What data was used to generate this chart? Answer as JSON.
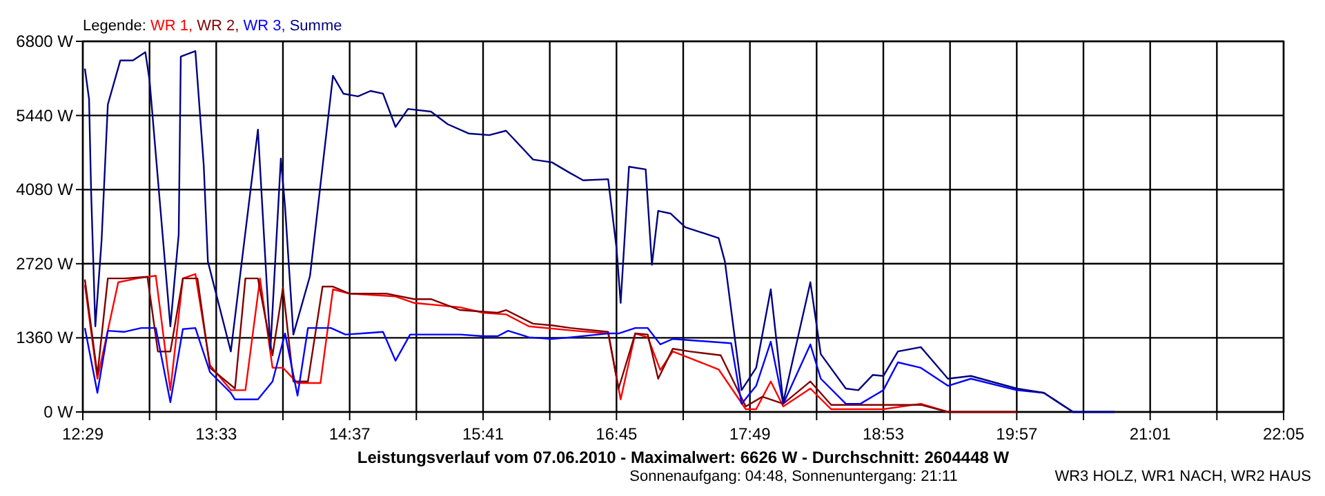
{
  "chart_data": {
    "type": "line",
    "title": "Leistungsverlauf vom 07.06.2010 - Maximalwert: 6626 W - Durchschnitt: 2604448 W",
    "subtitle": "Sonnenaufgang: 04:48, Sonnenuntergang: 21:11",
    "annotations": [
      "WR3 HOLZ, WR1 NACH, WR2 HAUS"
    ],
    "legend_title": "Legende:",
    "legend": "top left",
    "grid": true,
    "xlim": [
      "2010-06-07T12:29",
      "2010-06-07T22:05"
    ],
    "xticks": [
      {
        "value": "2010-06-07T12:29",
        "label": "12:29"
      },
      {
        "value": "2010-06-07T13:01",
        "label": null
      },
      {
        "value": "2010-06-07T13:33",
        "label": "13:33"
      },
      {
        "value": "2010-06-07T14:05",
        "label": null
      },
      {
        "value": "2010-06-07T14:37",
        "label": "14:37"
      },
      {
        "value": "2010-06-07T15:09",
        "label": null
      },
      {
        "value": "2010-06-07T15:41",
        "label": "15:41"
      },
      {
        "value": "2010-06-07T16:13",
        "label": null
      },
      {
        "value": "2010-06-07T16:45",
        "label": "16:45"
      },
      {
        "value": "2010-06-07T17:17",
        "label": null
      },
      {
        "value": "2010-06-07T17:49",
        "label": "17:49"
      },
      {
        "value": "2010-06-07T18:21",
        "label": null
      },
      {
        "value": "2010-06-07T18:53",
        "label": "18:53"
      },
      {
        "value": "2010-06-07T19:25",
        "label": null
      },
      {
        "value": "2010-06-07T19:57",
        "label": "19:57"
      },
      {
        "value": "2010-06-07T20:29",
        "label": null
      },
      {
        "value": "2010-06-07T21:01",
        "label": "21:01"
      },
      {
        "value": "2010-06-07T21:33",
        "label": null
      },
      {
        "value": "2010-06-07T22:05",
        "label": "22:05"
      }
    ],
    "ylim": [
      0,
      6800
    ],
    "yticks": [
      {
        "value": 0,
        "label": "0 W"
      },
      {
        "value": 1360,
        "label": "1360 W"
      },
      {
        "value": 2720,
        "label": "2720 W"
      },
      {
        "value": 4080,
        "label": "4080 W"
      },
      {
        "value": 5440,
        "label": "5440 W"
      },
      {
        "value": 6800,
        "label": "6800 W"
      }
    ],
    "series": [
      {
        "name": "WR 1,",
        "color": "#ff0000",
        "x": [
          "2010-06-07T12:30",
          "2010-06-07T12:36",
          "2010-06-07T12:46",
          "2010-06-07T12:55",
          "2010-06-07T13:04",
          "2010-06-07T13:11",
          "2010-06-07T13:17",
          "2010-06-07T13:23",
          "2010-06-07T13:30",
          "2010-06-07T13:40",
          "2010-06-07T13:47",
          "2010-06-07T13:54",
          "2010-06-07T14:00",
          "2010-06-07T14:05",
          "2010-06-07T14:12",
          "2010-06-07T14:23",
          "2010-06-07T14:29",
          "2010-06-07T14:37",
          "2010-06-07T14:59",
          "2010-06-07T15:08",
          "2010-06-07T15:30",
          "2010-06-07T15:41",
          "2010-06-07T15:52",
          "2010-06-07T16:03",
          "2010-06-07T16:25",
          "2010-06-07T16:41",
          "2010-06-07T16:47",
          "2010-06-07T16:54",
          "2010-06-07T17:00",
          "2010-06-07T17:06",
          "2010-06-07T17:12",
          "2010-06-07T17:20",
          "2010-06-07T17:34",
          "2010-06-07T17:47",
          "2010-06-07T17:52",
          "2010-06-07T17:59",
          "2010-06-07T18:05",
          "2010-06-07T18:18",
          "2010-06-07T18:28",
          "2010-06-07T18:44",
          "2010-06-07T18:53",
          "2010-06-07T19:11",
          "2010-06-07T19:24",
          "2010-06-07T19:35",
          "2010-06-07T19:57"
        ],
        "values": [
          2330,
          610,
          2380,
          2450,
          2500,
          400,
          2450,
          2530,
          860,
          400,
          400,
          2450,
          810,
          810,
          530,
          530,
          2250,
          2170,
          2120,
          2000,
          1920,
          1820,
          1790,
          1570,
          1490,
          1440,
          230,
          1440,
          1370,
          770,
          1110,
          990,
          780,
          50,
          50,
          560,
          100,
          430,
          50,
          50,
          50,
          150,
          0,
          0,
          0
        ]
      },
      {
        "name": "WR 2,",
        "color": "#800000",
        "x": [
          "2010-06-07T12:30",
          "2010-06-07T12:36",
          "2010-06-07T12:41",
          "2010-06-07T12:49",
          "2010-06-07T13:00",
          "2010-06-07T13:05",
          "2010-06-07T13:11",
          "2010-06-07T13:17",
          "2010-06-07T13:24",
          "2010-06-07T13:30",
          "2010-06-07T13:42",
          "2010-06-07T13:47",
          "2010-06-07T13:53",
          "2010-06-07T14:00",
          "2010-06-07T14:05",
          "2010-06-07T14:10",
          "2010-06-07T14:17",
          "2010-06-07T14:24",
          "2010-06-07T14:29",
          "2010-06-07T14:37",
          "2010-06-07T14:55",
          "2010-06-07T15:08",
          "2010-06-07T15:16",
          "2010-06-07T15:30",
          "2010-06-07T15:48",
          "2010-06-07T15:52",
          "2010-06-07T16:05",
          "2010-06-07T16:14",
          "2010-06-07T16:23",
          "2010-06-07T16:41",
          "2010-06-07T16:46",
          "2010-06-07T16:54",
          "2010-06-07T17:00",
          "2010-06-07T17:05",
          "2010-06-07T17:12",
          "2010-06-07T17:20",
          "2010-06-07T17:35",
          "2010-06-07T17:47",
          "2010-06-07T17:55",
          "2010-06-07T18:05",
          "2010-06-07T18:18",
          "2010-06-07T18:28",
          "2010-06-07T18:51",
          "2010-06-07T19:11",
          "2010-06-07T19:24",
          "2010-06-07T19:35",
          "2010-06-07T19:57"
        ],
        "values": [
          2430,
          680,
          2450,
          2450,
          2480,
          1110,
          1110,
          2450,
          2450,
          810,
          430,
          2450,
          2450,
          1040,
          2280,
          560,
          560,
          2300,
          2300,
          2170,
          2170,
          2070,
          2070,
          1870,
          1820,
          1870,
          1620,
          1590,
          1540,
          1470,
          430,
          1440,
          1420,
          610,
          1160,
          1110,
          1040,
          100,
          280,
          150,
          560,
          130,
          130,
          130,
          0,
          0,
          0
        ]
      },
      {
        "name": "WR 3,",
        "color": "#0000ff",
        "x": [
          "2010-06-07T12:30",
          "2010-06-07T12:36",
          "2010-06-07T12:41",
          "2010-06-07T12:49",
          "2010-06-07T12:57",
          "2010-06-07T13:04",
          "2010-06-07T13:11",
          "2010-06-07T13:17",
          "2010-06-07T13:23",
          "2010-06-07T13:30",
          "2010-06-07T13:40",
          "2010-06-07T13:42",
          "2010-06-07T13:53",
          "2010-06-07T14:00",
          "2010-06-07T14:06",
          "2010-06-07T14:12",
          "2010-06-07T14:17",
          "2010-06-07T14:28",
          "2010-06-07T14:35",
          "2010-06-07T14:43",
          "2010-06-07T14:53",
          "2010-06-07T14:59",
          "2010-06-07T15:06",
          "2010-06-07T15:16",
          "2010-06-07T15:30",
          "2010-06-07T15:41",
          "2010-06-07T15:48",
          "2010-06-07T15:53",
          "2010-06-07T16:03",
          "2010-06-07T16:14",
          "2010-06-07T16:23",
          "2010-06-07T16:41",
          "2010-06-07T16:46",
          "2010-06-07T16:54",
          "2010-06-07T17:00",
          "2010-06-07T17:06",
          "2010-06-07T17:12",
          "2010-06-07T17:40",
          "2010-06-07T17:45",
          "2010-06-07T17:52",
          "2010-06-07T17:59",
          "2010-06-07T18:05",
          "2010-06-07T18:18",
          "2010-06-07T18:23",
          "2010-06-07T18:35",
          "2010-06-07T18:42",
          "2010-06-07T18:53",
          "2010-06-07T19:00",
          "2010-06-07T19:11",
          "2010-06-07T19:24",
          "2010-06-07T19:35",
          "2010-06-07T19:57",
          "2010-06-07T20:10",
          "2010-06-07T20:24",
          "2010-06-07T20:44"
        ],
        "values": [
          1540,
          350,
          1490,
          1470,
          1540,
          1540,
          180,
          1520,
          1540,
          730,
          350,
          230,
          230,
          560,
          1440,
          300,
          1540,
          1540,
          1420,
          1440,
          1470,
          940,
          1420,
          1420,
          1420,
          1390,
          1390,
          1490,
          1370,
          1340,
          1370,
          1440,
          1440,
          1540,
          1540,
          1240,
          1340,
          1260,
          150,
          480,
          1290,
          150,
          1240,
          610,
          150,
          150,
          400,
          910,
          810,
          480,
          610,
          400,
          350,
          0,
          0
        ]
      },
      {
        "name": "Summe",
        "color": "#000080",
        "x": [
          "2010-06-07T12:30",
          "2010-06-07T12:32",
          "2010-06-07T12:33",
          "2010-06-07T12:35",
          "2010-06-07T12:38",
          "2010-06-07T12:41",
          "2010-06-07T12:47",
          "2010-06-07T12:53",
          "2010-06-07T12:59",
          "2010-06-07T13:01",
          "2010-06-07T13:11",
          "2010-06-07T13:15",
          "2010-06-07T13:16",
          "2010-06-07T13:23",
          "2010-06-07T13:27",
          "2010-06-07T13:29",
          "2010-06-07T13:40",
          "2010-06-07T13:53",
          "2010-06-07T13:59",
          "2010-06-07T14:04",
          "2010-06-07T14:06",
          "2010-06-07T14:10",
          "2010-06-07T14:18",
          "2010-06-07T14:29",
          "2010-06-07T14:34",
          "2010-06-07T14:41",
          "2010-06-07T14:47",
          "2010-06-07T14:53",
          "2010-06-07T14:59",
          "2010-06-07T15:05",
          "2010-06-07T15:16",
          "2010-06-07T15:24",
          "2010-06-07T15:34",
          "2010-06-07T15:44",
          "2010-06-07T15:52",
          "2010-06-07T16:05",
          "2010-06-07T16:14",
          "2010-06-07T16:22",
          "2010-06-07T16:29",
          "2010-06-07T16:41",
          "2010-06-07T16:45",
          "2010-06-07T16:47",
          "2010-06-07T16:51",
          "2010-06-07T16:59",
          "2010-06-07T17:02",
          "2010-06-07T17:05",
          "2010-06-07T17:11",
          "2010-06-07T17:18",
          "2010-06-07T17:34",
          "2010-06-07T17:37",
          "2010-06-07T17:45",
          "2010-06-07T17:52",
          "2010-06-07T17:59",
          "2010-06-07T18:05",
          "2010-06-07T18:18",
          "2010-06-07T18:23",
          "2010-06-07T18:35",
          "2010-06-07T18:41",
          "2010-06-07T18:48",
          "2010-06-07T18:53",
          "2010-06-07T19:00",
          "2010-06-07T19:11",
          "2010-06-07T19:24",
          "2010-06-07T19:35",
          "2010-06-07T19:57",
          "2010-06-07T20:10",
          "2010-06-07T20:24",
          "2010-06-07T20:44"
        ],
        "values": [
          6300,
          5740,
          4020,
          1570,
          3140,
          5640,
          6450,
          6450,
          6600,
          6090,
          1570,
          3260,
          6520,
          6620,
          4530,
          2760,
          1110,
          5180,
          1160,
          4650,
          3770,
          1420,
          2500,
          6170,
          5840,
          5790,
          5890,
          5840,
          5230,
          5560,
          5510,
          5280,
          5110,
          5080,
          5160,
          4630,
          4580,
          4400,
          4250,
          4270,
          3010,
          2000,
          4500,
          4450,
          2700,
          3690,
          3640,
          3390,
          3190,
          2760,
          400,
          810,
          2250,
          180,
          2380,
          1060,
          430,
          400,
          680,
          660,
          1110,
          1190,
          610,
          660,
          430,
          350,
          0,
          0
        ]
      }
    ]
  }
}
